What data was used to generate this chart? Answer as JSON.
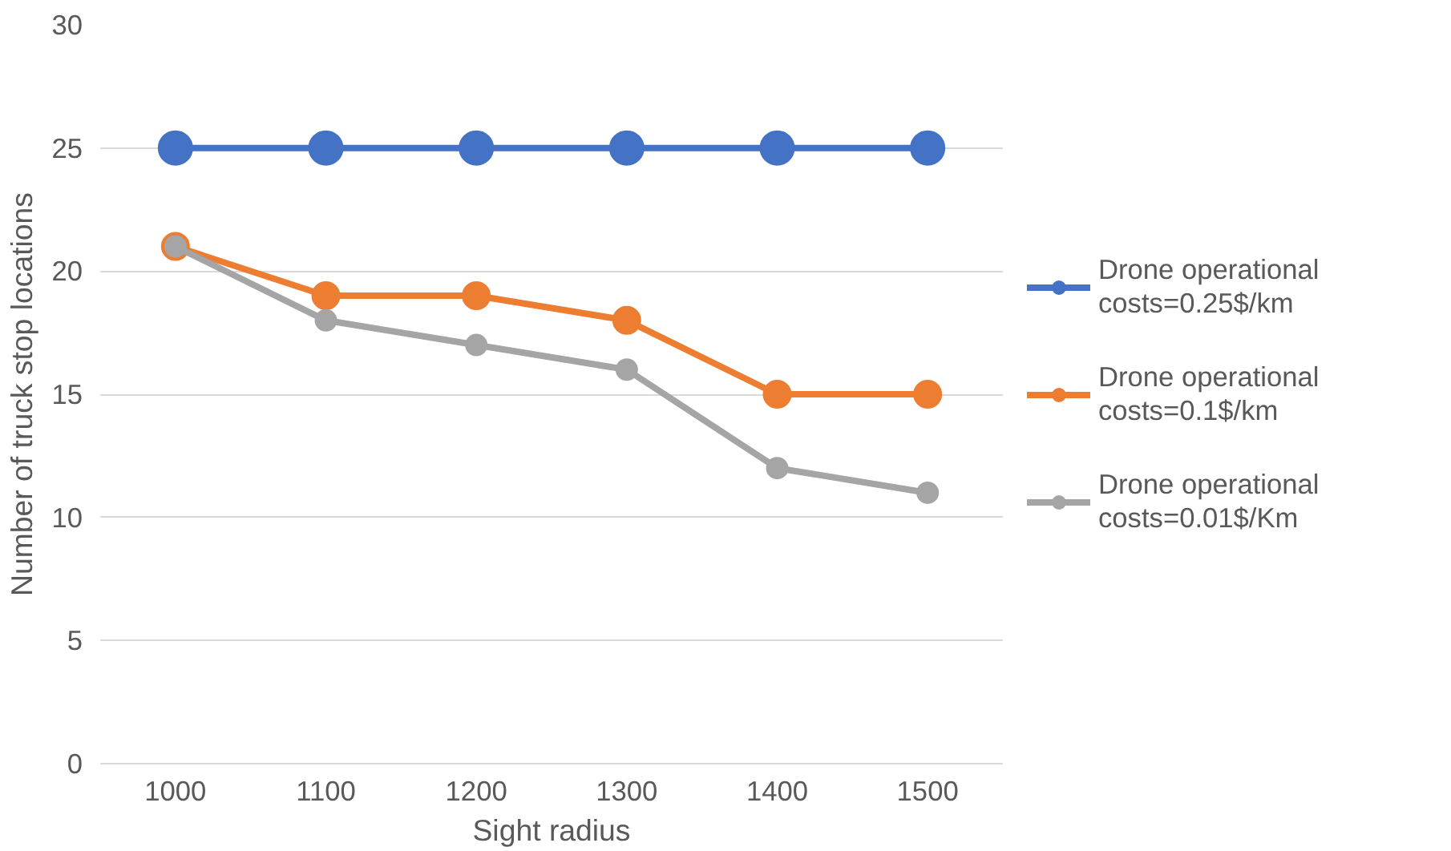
{
  "chart_data": {
    "type": "line",
    "xlabel": "Sight radius",
    "ylabel": "Number of truck stop locations",
    "categories": [
      "1000",
      "1100",
      "1200",
      "1300",
      "1400",
      "1500"
    ],
    "series": [
      {
        "name": "Drone operational costs=0.25$/km",
        "color": "#4472c4",
        "values": [
          25,
          25,
          25,
          25,
          25,
          25
        ]
      },
      {
        "name": "Drone operational costs=0.1$/km",
        "color": "#ed7d31",
        "values": [
          21,
          19,
          19,
          18,
          15,
          15
        ]
      },
      {
        "name": "Drone operational costs=0.01$/Km",
        "color": "#a5a5a5",
        "values": [
          21,
          18,
          17,
          16,
          12,
          11
        ]
      }
    ],
    "ylim": [
      0,
      30
    ],
    "yticks": [
      0,
      5,
      10,
      15,
      20,
      25,
      30
    ],
    "grid": "y",
    "legend": "right",
    "marker": "circle",
    "line_style": "solid"
  }
}
